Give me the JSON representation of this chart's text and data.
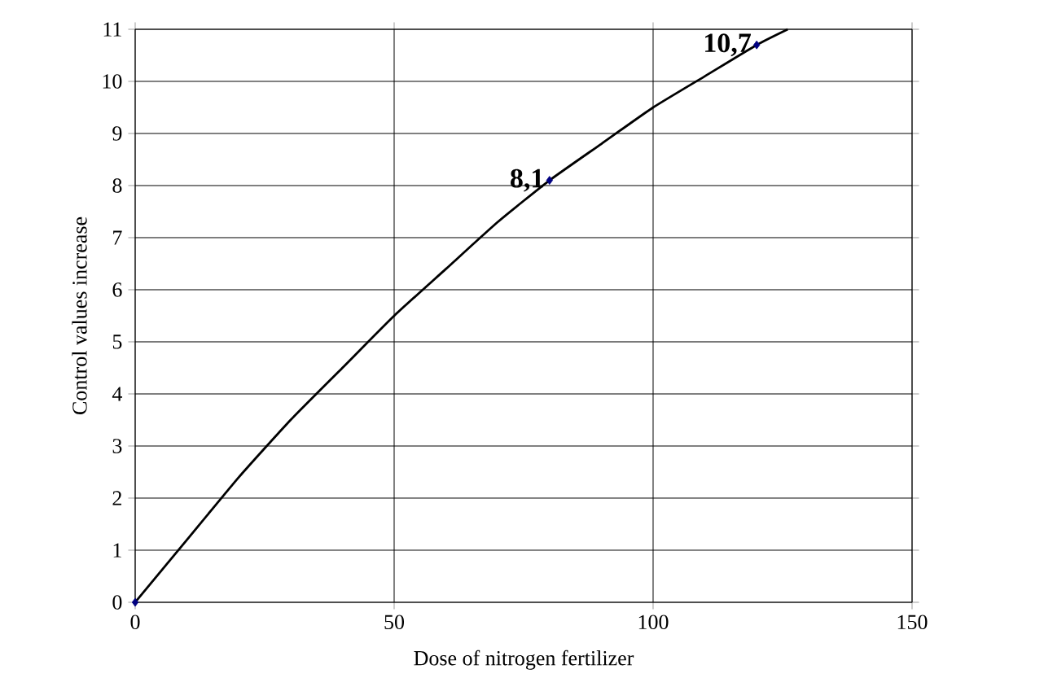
{
  "chart_data": {
    "type": "line",
    "xlabel": "Dose of nitrogen fertilizer",
    "ylabel": "Control values increase",
    "xlim": [
      0,
      150
    ],
    "ylim": [
      0,
      11
    ],
    "xticks": [
      0,
      50,
      100,
      150
    ],
    "yticks": [
      0,
      1,
      2,
      3,
      4,
      5,
      6,
      7,
      8,
      9,
      10,
      11
    ],
    "grid": true,
    "series": [
      {
        "color": "#000000",
        "marker": "none",
        "x": [
          0,
          10,
          20,
          30,
          40,
          50,
          60,
          70,
          80,
          90,
          100,
          110,
          120,
          126
        ],
        "values": [
          0,
          1.2,
          2.4,
          3.5,
          4.5,
          5.5,
          6.4,
          7.3,
          8.1,
          8.8,
          9.5,
          10.1,
          10.7,
          11.0
        ]
      },
      {
        "type": "scatter",
        "color": "#000080",
        "marker": "diamond",
        "x": [
          0,
          80,
          120
        ],
        "values": [
          0,
          8.1,
          10.7
        ]
      }
    ],
    "annotations": [
      {
        "text": "8,1",
        "x": 80,
        "y": 8.1
      },
      {
        "text": "10,7",
        "x": 120,
        "y": 10.7
      }
    ]
  }
}
